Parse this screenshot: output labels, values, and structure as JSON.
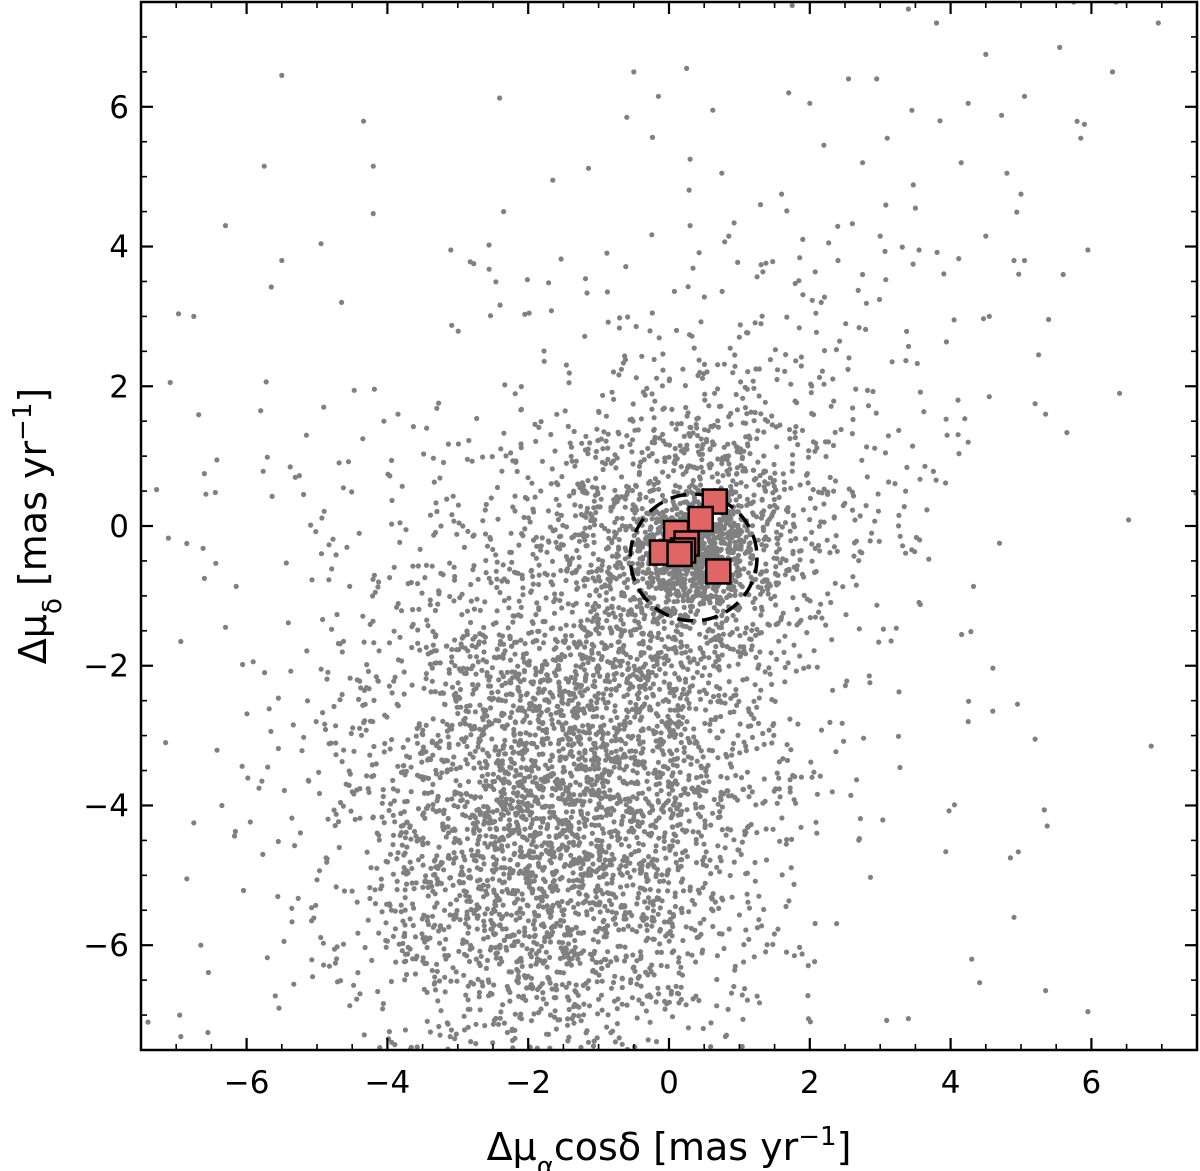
{
  "chart_data": {
    "type": "scatter",
    "xlabel": "Δμ_α cosδ [mas yr⁻¹]",
    "ylabel": "Δμ_δ [mas yr⁻¹]",
    "xlabel_parts": {
      "prefix": "Δμ",
      "sub": "α",
      "mid": "cosδ [mas yr",
      "sup": "−1",
      "suffix": "]"
    },
    "ylabel_parts": {
      "prefix": "Δμ",
      "sub": "δ",
      "mid": " [mas yr",
      "sup": "−1",
      "suffix": "]"
    },
    "xlim": [
      -7.5,
      7.5
    ],
    "ylim": [
      -7.5,
      7.5
    ],
    "xticks": [
      -6,
      -4,
      -2,
      0,
      2,
      4,
      6
    ],
    "yticks": [
      -6,
      -4,
      -2,
      0,
      2,
      4,
      6
    ],
    "xtick_labels": [
      "−6",
      "−4",
      "−2",
      "0",
      "2",
      "4",
      "6"
    ],
    "ytick_labels": [
      "−6",
      "−4",
      "−2",
      "0",
      "2",
      "4",
      "6"
    ],
    "minor_tick_step": 0.5,
    "grid": false,
    "legend": "none",
    "colors": {
      "field": "#808080",
      "members": "#e06666",
      "member_edge": "#000000",
      "circle": "#000000"
    },
    "circle": {
      "center": [
        0.35,
        -0.45
      ],
      "radius": 0.9,
      "style": "dashed"
    },
    "series": [
      {
        "marker": "square",
        "points": [
          [
            0.65,
            0.35
          ],
          [
            0.45,
            0.1
          ],
          [
            0.1,
            -0.1
          ],
          [
            0.25,
            -0.25
          ],
          [
            0.2,
            -0.35
          ],
          [
            -0.1,
            -0.38
          ],
          [
            0.15,
            -0.4
          ],
          [
            0.7,
            -0.65
          ]
        ]
      },
      {
        "marker": "dot",
        "points": [
          [
            -5.5,
            6.45
          ],
          [
            -5.75,
            5.15
          ],
          [
            -4.2,
            5.15
          ],
          [
            -6.3,
            4.3
          ],
          [
            -5.5,
            3.8
          ],
          [
            -6.75,
            3.0
          ],
          [
            -4.65,
            3.2
          ],
          [
            -3.1,
            3.95
          ],
          [
            -1.65,
            4.95
          ],
          [
            -2.35,
            4.5
          ],
          [
            -0.5,
            6.5
          ],
          [
            -0.15,
            6.15
          ],
          [
            0.25,
            6.55
          ],
          [
            -0.6,
            5.85
          ],
          [
            0.3,
            5.25
          ],
          [
            0.75,
            5.05
          ],
          [
            1.3,
            4.6
          ],
          [
            0.3,
            4.3
          ],
          [
            0.85,
            4.15
          ],
          [
            1.6,
            4.75
          ],
          [
            1.75,
            7.45
          ],
          [
            1.7,
            6.2
          ],
          [
            2.0,
            6.05
          ],
          [
            2.2,
            5.45
          ],
          [
            2.55,
            6.4
          ],
          [
            2.95,
            6.4
          ],
          [
            3.4,
            7.4
          ],
          [
            3.8,
            7.2
          ],
          [
            4.5,
            6.75
          ],
          [
            5.05,
            6.15
          ],
          [
            4.25,
            6.05
          ],
          [
            3.85,
            5.8
          ],
          [
            3.45,
            5.95
          ],
          [
            4.15,
            5.2
          ],
          [
            3.1,
            5.55
          ],
          [
            2.75,
            5.2
          ],
          [
            5.75,
            7.5
          ],
          [
            6.35,
            7.5
          ],
          [
            6.95,
            7.2
          ],
          [
            6.3,
            6.5
          ],
          [
            5.85,
            5.55
          ],
          [
            5.9,
            5.75
          ],
          [
            5.55,
            6.85
          ],
          [
            4.8,
            5.05
          ],
          [
            5.0,
            4.75
          ],
          [
            4.5,
            4.15
          ],
          [
            5.05,
            3.8
          ],
          [
            5.6,
            3.6
          ],
          [
            5.95,
            3.95
          ],
          [
            4.9,
            3.8
          ],
          [
            3.0,
            4.15
          ],
          [
            2.4,
            3.8
          ],
          [
            2.75,
            3.6
          ],
          [
            3.5,
            4.55
          ],
          [
            4.05,
            2.95
          ],
          [
            4.55,
            3.0
          ],
          [
            5.25,
            2.45
          ],
          [
            5.2,
            1.75
          ],
          [
            5.35,
            1.6
          ],
          [
            4.55,
            1.85
          ],
          [
            4.25,
            1.2
          ],
          [
            3.95,
            1.3
          ],
          [
            6.4,
            1.9
          ],
          [
            -6.6,
            0.75
          ],
          [
            -6.6,
            -0.75
          ],
          [
            -6.85,
            -0.25
          ],
          [
            -6.3,
            -1.45
          ],
          [
            -5.8,
            1.65
          ],
          [
            -5.15,
            1.3
          ],
          [
            -4.35,
            1.25
          ],
          [
            -4.05,
            1.5
          ],
          [
            -3.85,
            1.6
          ],
          [
            4.6,
            -2.65
          ],
          [
            4.25,
            -2.8
          ],
          [
            4.95,
            -2.55
          ],
          [
            5.2,
            -3.05
          ],
          [
            6.85,
            -3.15
          ],
          [
            4.85,
            -4.75
          ],
          [
            4.9,
            -5.6
          ],
          [
            4.3,
            -6.2
          ],
          [
            5.35,
            -6.65
          ],
          [
            5.95,
            -6.95
          ],
          [
            3.4,
            -7.05
          ],
          [
            -6.65,
            -6.0
          ],
          [
            -6.75,
            -4.25
          ],
          [
            -7.15,
            -3.1
          ],
          [
            -7.4,
            -7.1
          ],
          [
            -6.95,
            -7.0
          ],
          [
            -6.55,
            -7.25
          ],
          [
            -6.85,
            -5.05
          ]
        ],
        "clusters": [
          {
            "center": [
              0.35,
              -0.4
            ],
            "spread": [
              0.35,
              0.35
            ],
            "count": 550
          },
          {
            "center": [
              0.3,
              -0.2
            ],
            "spread": [
              1.05,
              1.0
            ],
            "count": 1100
          },
          {
            "center": [
              -1.7,
              -4.8
            ],
            "spread": [
              1.45,
              1.7
            ],
            "count": 2700
          },
          {
            "center": [
              -0.7,
              -2.6
            ],
            "spread": [
              1.3,
              1.3
            ],
            "count": 900
          },
          {
            "center": [
              -2.8,
              -1.5
            ],
            "spread": [
              1.8,
              1.7
            ],
            "count": 400
          },
          {
            "center": [
              1.2,
              1.3
            ],
            "spread": [
              1.6,
              1.5
            ],
            "count": 350
          },
          {
            "center": [
              -0.5,
              -0.8
            ],
            "spread": [
              3.8,
              3.8
            ],
            "count": 180
          }
        ]
      }
    ]
  }
}
